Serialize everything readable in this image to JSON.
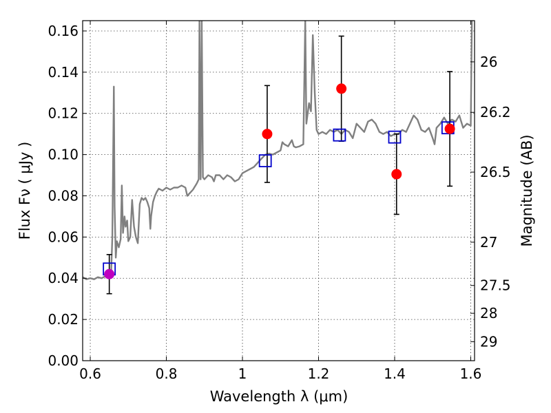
{
  "chart_data": {
    "type": "scatter",
    "xlabel": "Wavelength  λ (μm)",
    "ylabel": "Flux  Fν  ( μJy )",
    "y2label": "Magnitude (AB)",
    "xlim": [
      0.58,
      1.61
    ],
    "ylim": [
      0.0,
      0.165
    ],
    "x_ticks": [
      0.6,
      0.8,
      1.0,
      1.2,
      1.4,
      1.6
    ],
    "x_tick_labels": [
      "0.6",
      "0.8",
      "1",
      "1.2",
      "1.4",
      "1.6"
    ],
    "y_ticks": [
      0.0,
      0.02,
      0.04,
      0.06,
      0.08,
      0.1,
      0.12,
      0.14,
      0.16
    ],
    "y_tick_labels": [
      "0.00",
      "0.02",
      "0.04",
      "0.06",
      "0.08",
      "0.10",
      "0.12",
      "0.14",
      "0.16"
    ],
    "y2_ticks": [
      {
        "label": "26",
        "flux": 0.145
      },
      {
        "label": "26.2",
        "flux": 0.1205
      },
      {
        "label": "26.5",
        "flux": 0.0915
      },
      {
        "label": "27",
        "flux": 0.0575
      },
      {
        "label": "27.5",
        "flux": 0.0365
      },
      {
        "label": "28",
        "flux": 0.023
      },
      {
        "label": "29",
        "flux": 0.0092
      }
    ],
    "grid": true,
    "colors": {
      "spectrum": "#808080",
      "observed": "#ff0000",
      "observed_first": "#bf00bf",
      "model": "#0000cc",
      "errorbar": "#000000"
    },
    "observed": [
      {
        "x": 0.65,
        "y": 0.042,
        "yerr_low": 0.0095,
        "yerr_high": 0.0095
      },
      {
        "x": 1.065,
        "y": 0.11,
        "yerr_low": 0.0235,
        "yerr_high": 0.0235
      },
      {
        "x": 1.26,
        "y": 0.132,
        "yerr_low": 0.0255,
        "yerr_high": 0.0255
      },
      {
        "x": 1.405,
        "y": 0.0905,
        "yerr_low": 0.0195,
        "yerr_high": 0.0195
      },
      {
        "x": 1.545,
        "y": 0.1125,
        "yerr_low": 0.0278,
        "yerr_high": 0.0278
      }
    ],
    "model": [
      {
        "x": 0.65,
        "y": 0.0445
      },
      {
        "x": 1.06,
        "y": 0.097
      },
      {
        "x": 1.255,
        "y": 0.1095
      },
      {
        "x": 1.4,
        "y": 0.1085
      },
      {
        "x": 1.54,
        "y": 0.113
      }
    ],
    "spectrum": [
      [
        0.58,
        0.0405
      ],
      [
        0.59,
        0.0395
      ],
      [
        0.6,
        0.04
      ],
      [
        0.61,
        0.0395
      ],
      [
        0.62,
        0.0405
      ],
      [
        0.63,
        0.04
      ],
      [
        0.64,
        0.041
      ],
      [
        0.645,
        0.042
      ],
      [
        0.65,
        0.042
      ],
      [
        0.655,
        0.043
      ],
      [
        0.658,
        0.06
      ],
      [
        0.662,
        0.133
      ],
      [
        0.664,
        0.075
      ],
      [
        0.667,
        0.05
      ],
      [
        0.67,
        0.058
      ],
      [
        0.675,
        0.055
      ],
      [
        0.68,
        0.059
      ],
      [
        0.683,
        0.085
      ],
      [
        0.686,
        0.062
      ],
      [
        0.69,
        0.07
      ],
      [
        0.693,
        0.065
      ],
      [
        0.697,
        0.068
      ],
      [
        0.7,
        0.058
      ],
      [
        0.705,
        0.06
      ],
      [
        0.71,
        0.078
      ],
      [
        0.715,
        0.065
      ],
      [
        0.72,
        0.06
      ],
      [
        0.725,
        0.057
      ],
      [
        0.73,
        0.076
      ],
      [
        0.735,
        0.079
      ],
      [
        0.74,
        0.078
      ],
      [
        0.745,
        0.079
      ],
      [
        0.75,
        0.077
      ],
      [
        0.755,
        0.074
      ],
      [
        0.758,
        0.064
      ],
      [
        0.76,
        0.07
      ],
      [
        0.765,
        0.077
      ],
      [
        0.77,
        0.08
      ],
      [
        0.775,
        0.082
      ],
      [
        0.78,
        0.0835
      ],
      [
        0.79,
        0.0825
      ],
      [
        0.8,
        0.084
      ],
      [
        0.81,
        0.083
      ],
      [
        0.82,
        0.084
      ],
      [
        0.83,
        0.084
      ],
      [
        0.84,
        0.085
      ],
      [
        0.85,
        0.084
      ],
      [
        0.855,
        0.08
      ],
      [
        0.86,
        0.081
      ],
      [
        0.87,
        0.083
      ],
      [
        0.88,
        0.086
      ],
      [
        0.885,
        0.088
      ],
      [
        0.887,
        0.165
      ],
      [
        0.89,
        0.088
      ],
      [
        0.893,
        0.165
      ],
      [
        0.896,
        0.089
      ],
      [
        0.9,
        0.088
      ],
      [
        0.91,
        0.09
      ],
      [
        0.92,
        0.089
      ],
      [
        0.925,
        0.087
      ],
      [
        0.93,
        0.09
      ],
      [
        0.94,
        0.09
      ],
      [
        0.95,
        0.088
      ],
      [
        0.96,
        0.09
      ],
      [
        0.97,
        0.089
      ],
      [
        0.98,
        0.087
      ],
      [
        0.99,
        0.088
      ],
      [
        1.0,
        0.091
      ],
      [
        1.01,
        0.092
      ],
      [
        1.02,
        0.093
      ],
      [
        1.03,
        0.094
      ],
      [
        1.04,
        0.096
      ],
      [
        1.05,
        0.098
      ],
      [
        1.06,
        0.1
      ],
      [
        1.07,
        0.1005
      ],
      [
        1.08,
        0.1
      ],
      [
        1.09,
        0.101
      ],
      [
        1.1,
        0.102
      ],
      [
        1.105,
        0.106
      ],
      [
        1.11,
        0.105
      ],
      [
        1.12,
        0.104
      ],
      [
        1.13,
        0.107
      ],
      [
        1.135,
        0.104
      ],
      [
        1.14,
        0.1035
      ],
      [
        1.15,
        0.104
      ],
      [
        1.16,
        0.105
      ],
      [
        1.165,
        0.165
      ],
      [
        1.168,
        0.115
      ],
      [
        1.175,
        0.125
      ],
      [
        1.18,
        0.121
      ],
      [
        1.185,
        0.158
      ],
      [
        1.19,
        0.13
      ],
      [
        1.195,
        0.112
      ],
      [
        1.2,
        0.11
      ],
      [
        1.21,
        0.111
      ],
      [
        1.22,
        0.11
      ],
      [
        1.23,
        0.112
      ],
      [
        1.24,
        0.111
      ],
      [
        1.25,
        0.112
      ],
      [
        1.26,
        0.11
      ],
      [
        1.27,
        0.112
      ],
      [
        1.28,
        0.111
      ],
      [
        1.29,
        0.108
      ],
      [
        1.3,
        0.115
      ],
      [
        1.31,
        0.113
      ],
      [
        1.32,
        0.111
      ],
      [
        1.33,
        0.116
      ],
      [
        1.34,
        0.117
      ],
      [
        1.35,
        0.115
      ],
      [
        1.36,
        0.111
      ],
      [
        1.37,
        0.11
      ],
      [
        1.38,
        0.111
      ],
      [
        1.39,
        0.109
      ],
      [
        1.4,
        0.11
      ],
      [
        1.41,
        0.11
      ],
      [
        1.42,
        0.112
      ],
      [
        1.43,
        0.111
      ],
      [
        1.44,
        0.115
      ],
      [
        1.45,
        0.119
      ],
      [
        1.46,
        0.117
      ],
      [
        1.47,
        0.112
      ],
      [
        1.48,
        0.111
      ],
      [
        1.49,
        0.113
      ],
      [
        1.5,
        0.108
      ],
      [
        1.505,
        0.105
      ],
      [
        1.51,
        0.113
      ],
      [
        1.52,
        0.115
      ],
      [
        1.53,
        0.118
      ],
      [
        1.54,
        0.115
      ],
      [
        1.55,
        0.117
      ],
      [
        1.56,
        0.116
      ],
      [
        1.57,
        0.119
      ],
      [
        1.58,
        0.113
      ],
      [
        1.59,
        0.115
      ],
      [
        1.6,
        0.114
      ],
      [
        1.603,
        0.165
      ]
    ]
  }
}
